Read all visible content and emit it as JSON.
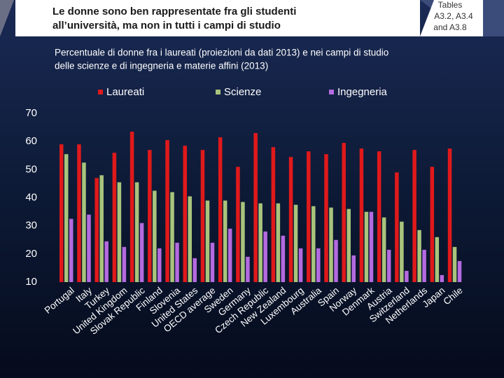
{
  "header": {
    "title": [
      "Le donne sono ben rappresentate fra gli studenti",
      "all’università, ma non in tutti i campi di studio"
    ],
    "source": [
      "Tables",
      "A3.2, A3.4",
      "and A3.8"
    ]
  },
  "chart_data": {
    "type": "bar",
    "subtitle": [
      "Percentuale di donne fra i laureati (proiezioni da dati 2013) e nei campi di studio",
      "delle scienze e di ingegneria e materie affini (2013)"
    ],
    "categories": [
      "Portugal",
      "Italy",
      "Turkey",
      "United Kingdom",
      "Slovak Republic",
      "Finland",
      "Slovenia",
      "United States",
      "OECD average",
      "Sweden",
      "Germany",
      "Czech Republic",
      "New Zealand",
      "Luxembourg",
      "Australia",
      "Spain",
      "Norway",
      "Denmark",
      "Austria",
      "Switzerland",
      "Netherlands",
      "Japan",
      "Chile"
    ],
    "series": [
      {
        "name": "Laureati",
        "color": "#e0191b",
        "values": [
          59,
          59,
          47,
          56,
          63.5,
          57,
          60.5,
          58.5,
          57,
          61.5,
          51,
          63,
          58,
          54.5,
          56.5,
          55.5,
          59.5,
          57.5,
          56.5,
          49,
          57,
          51,
          57.5
        ]
      },
      {
        "name": "Scienze",
        "color": "#a9c47c",
        "values": [
          55.5,
          52.5,
          48,
          45.5,
          45.5,
          42.5,
          42,
          40.5,
          39,
          39,
          38.5,
          38,
          38,
          37.5,
          37,
          36.5,
          36,
          35,
          33,
          31.5,
          28.5,
          26,
          22.5
        ]
      },
      {
        "name": "Ingegneria",
        "color": "#b46ae0",
        "values": [
          32.5,
          34,
          24.5,
          22.5,
          31,
          22,
          24,
          18.5,
          24,
          29,
          19,
          28,
          26.5,
          22,
          22,
          25,
          19.5,
          35,
          21.5,
          14,
          21.5,
          12.5,
          17.5
        ]
      }
    ],
    "ylim": [
      10,
      70
    ],
    "yticks": [
      10,
      20,
      30,
      40,
      50,
      60,
      70
    ],
    "grid": false,
    "legend": "top"
  }
}
